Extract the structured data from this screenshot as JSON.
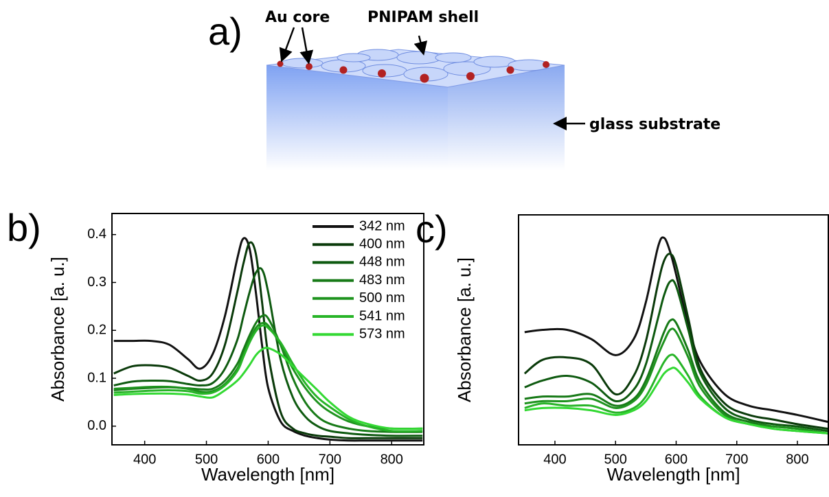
{
  "figure": {
    "panel_a": {
      "label": "a)",
      "au_core": "Au core",
      "pnipam_shell": "PNIPAM shell",
      "glass_substrate": "glass substrate"
    }
  },
  "chart_data": [
    {
      "type": "line",
      "panel_label": "b)",
      "xlabel": "Wavelength [nm]",
      "ylabel": "Absorbance [a. u.]",
      "x": [
        350,
        380,
        410,
        440,
        470,
        490,
        510,
        530,
        550,
        560,
        570,
        580,
        590,
        600,
        620,
        640,
        660,
        680,
        700,
        730,
        760,
        800,
        850
      ],
      "xlim": [
        347,
        852
      ],
      "xticks": [
        400,
        500,
        600,
        700,
        800
      ],
      "ylim": [
        -0.039,
        0.444
      ],
      "yticks": [
        {
          "value": 0,
          "label": "0.0"
        },
        0.1,
        0.2,
        0.3,
        0.4
      ],
      "legend": "upper right",
      "series": [
        {
          "name": "342 nm",
          "color": "#111111",
          "values": [
            0.178,
            0.178,
            0.178,
            0.17,
            0.14,
            0.12,
            0.15,
            0.23,
            0.35,
            0.392,
            0.37,
            0.28,
            0.17,
            0.08,
            0.01,
            -0.01,
            -0.02,
            -0.025,
            -0.028,
            -0.03,
            -0.03,
            -0.03,
            -0.03
          ]
        },
        {
          "name": "400 nm",
          "color": "#0a3a0a",
          "values": [
            0.11,
            0.125,
            0.127,
            0.122,
            0.105,
            0.095,
            0.11,
            0.17,
            0.28,
            0.34,
            0.383,
            0.36,
            0.26,
            0.15,
            0.03,
            -0.005,
            -0.015,
            -0.02,
            -0.022,
            -0.025,
            -0.025,
            -0.025,
            -0.025
          ]
        },
        {
          "name": "448 nm",
          "color": "#0e5a10",
          "values": [
            0.085,
            0.093,
            0.095,
            0.094,
            0.088,
            0.085,
            0.09,
            0.12,
            0.18,
            0.23,
            0.28,
            0.32,
            0.327,
            0.28,
            0.14,
            0.06,
            0.02,
            0.0,
            -0.01,
            -0.015,
            -0.018,
            -0.02,
            -0.02
          ]
        },
        {
          "name": "483 nm",
          "color": "#177a17",
          "values": [
            0.075,
            0.078,
            0.08,
            0.081,
            0.079,
            0.077,
            0.078,
            0.095,
            0.13,
            0.16,
            0.19,
            0.215,
            0.23,
            0.225,
            0.17,
            0.1,
            0.05,
            0.02,
            0.005,
            -0.005,
            -0.01,
            -0.012,
            -0.012
          ]
        },
        {
          "name": "500 nm",
          "color": "#1e931e",
          "values": [
            0.078,
            0.08,
            0.082,
            0.082,
            0.078,
            0.072,
            0.073,
            0.088,
            0.12,
            0.15,
            0.18,
            0.205,
            0.215,
            0.21,
            0.17,
            0.12,
            0.08,
            0.05,
            0.03,
            0.01,
            0.0,
            -0.005,
            -0.005
          ]
        },
        {
          "name": "541 nm",
          "color": "#27b427",
          "values": [
            0.07,
            0.072,
            0.074,
            0.075,
            0.073,
            0.068,
            0.07,
            0.085,
            0.115,
            0.145,
            0.175,
            0.198,
            0.21,
            0.205,
            0.175,
            0.13,
            0.09,
            0.06,
            0.04,
            0.015,
            0.0,
            -0.01,
            -0.01
          ]
        },
        {
          "name": "573 nm",
          "color": "#33d933",
          "values": [
            0.065,
            0.067,
            0.068,
            0.068,
            0.066,
            0.062,
            0.06,
            0.075,
            0.095,
            0.11,
            0.128,
            0.148,
            0.16,
            0.163,
            0.15,
            0.125,
            0.1,
            0.075,
            0.05,
            0.02,
            0.005,
            -0.005,
            -0.005
          ]
        }
      ]
    },
    {
      "type": "line",
      "panel_label": "c)",
      "xlabel": "Wavelength [nm]",
      "ylabel": "Absorbance [a. u.]",
      "x": [
        350,
        380,
        420,
        460,
        500,
        530,
        550,
        570,
        580,
        590,
        600,
        620,
        640,
        680,
        720,
        760,
        800,
        850
      ],
      "xlim": [
        340,
        851
      ],
      "xticks": [
        400,
        500,
        600,
        700,
        800
      ],
      "ylim": [
        0,
        1
      ],
      "series": [
        {
          "color": "#111111",
          "values": [
            0.49,
            0.5,
            0.5,
            0.46,
            0.39,
            0.46,
            0.62,
            0.86,
            0.9,
            0.84,
            0.74,
            0.52,
            0.36,
            0.22,
            0.17,
            0.15,
            0.13,
            0.1
          ]
        },
        {
          "color": "#0a3a0a",
          "values": [
            0.31,
            0.37,
            0.38,
            0.35,
            0.22,
            0.3,
            0.45,
            0.7,
            0.8,
            0.83,
            0.78,
            0.55,
            0.33,
            0.18,
            0.13,
            0.11,
            0.09,
            0.07
          ]
        },
        {
          "color": "#0e5a10",
          "values": [
            0.25,
            0.28,
            0.3,
            0.27,
            0.19,
            0.24,
            0.35,
            0.55,
            0.65,
            0.71,
            0.69,
            0.5,
            0.31,
            0.16,
            0.11,
            0.09,
            0.08,
            0.06
          ]
        },
        {
          "color": "#177a17",
          "values": [
            0.2,
            0.21,
            0.21,
            0.22,
            0.17,
            0.2,
            0.28,
            0.42,
            0.49,
            0.54,
            0.53,
            0.41,
            0.27,
            0.14,
            0.1,
            0.08,
            0.07,
            0.05
          ]
        },
        {
          "color": "#1e931e",
          "values": [
            0.18,
            0.19,
            0.19,
            0.2,
            0.16,
            0.19,
            0.26,
            0.39,
            0.45,
            0.5,
            0.49,
            0.38,
            0.25,
            0.13,
            0.09,
            0.08,
            0.07,
            0.05
          ]
        },
        {
          "color": "#27b427",
          "values": [
            0.16,
            0.18,
            0.17,
            0.17,
            0.14,
            0.16,
            0.21,
            0.31,
            0.36,
            0.39,
            0.38,
            0.3,
            0.21,
            0.12,
            0.09,
            0.07,
            0.06,
            0.05
          ]
        },
        {
          "color": "#33d933",
          "values": [
            0.15,
            0.16,
            0.16,
            0.15,
            0.13,
            0.15,
            0.19,
            0.27,
            0.31,
            0.33,
            0.33,
            0.27,
            0.2,
            0.12,
            0.09,
            0.07,
            0.06,
            0.05
          ]
        }
      ]
    }
  ]
}
